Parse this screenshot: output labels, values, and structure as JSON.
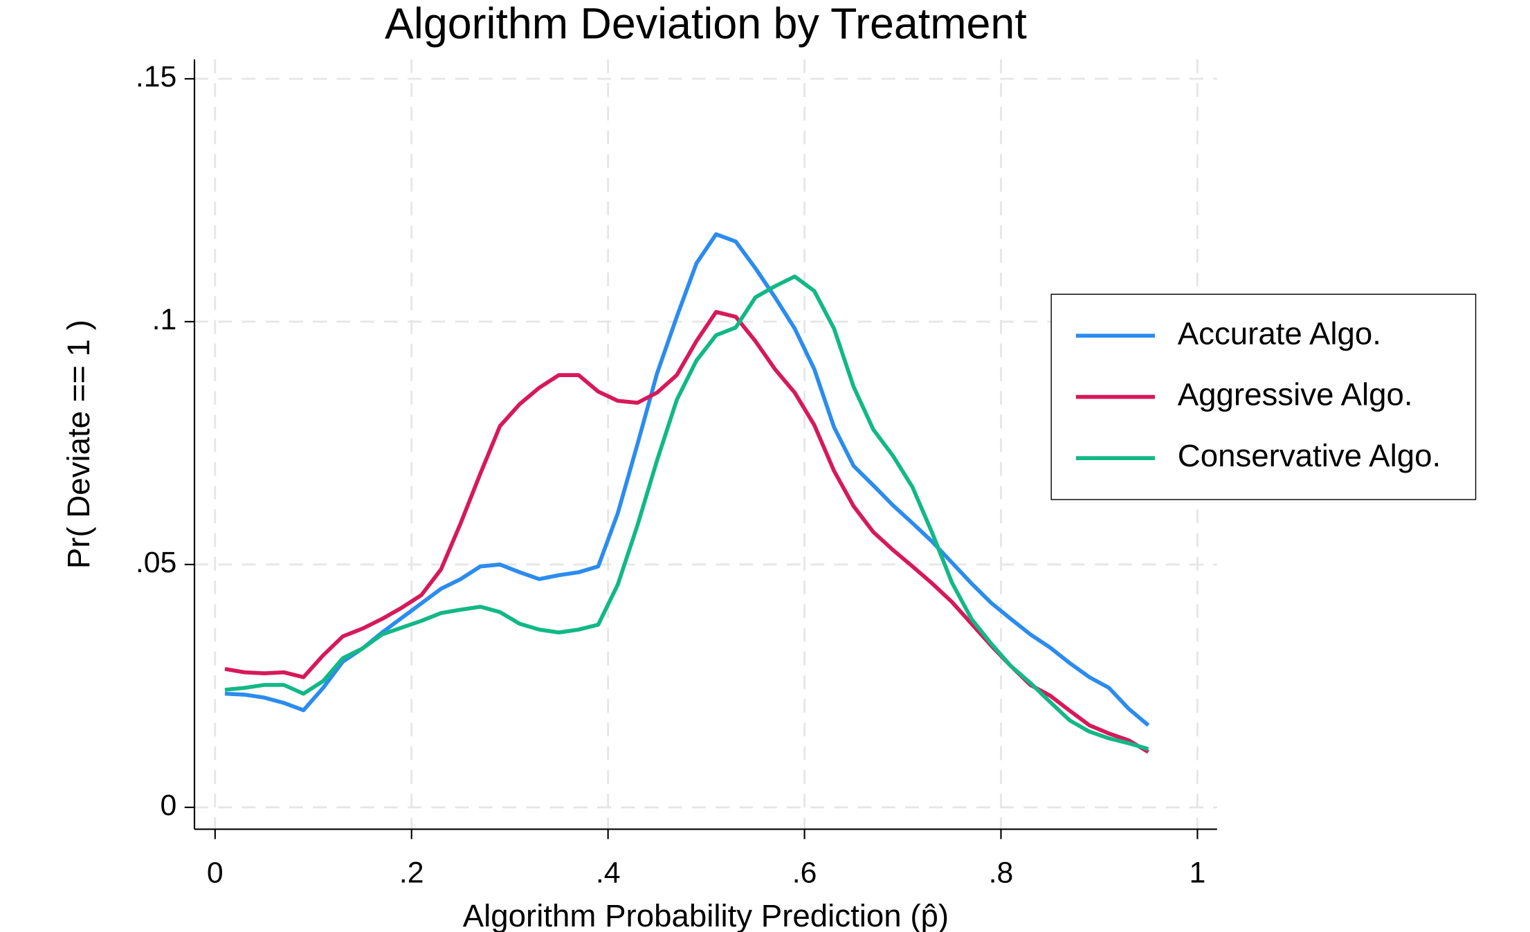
{
  "chart_data": {
    "type": "line",
    "title": "Algorithm Deviation by Treatment",
    "x_label": "Algorithm Probability Prediction (p̂)",
    "y_label": "Pr( Deviate == 1 )",
    "x": [
      0.01,
      0.03,
      0.05,
      0.07,
      0.09,
      0.11,
      0.13,
      0.15,
      0.17,
      0.19,
      0.21,
      0.23,
      0.25,
      0.27,
      0.29,
      0.31,
      0.33,
      0.35,
      0.37,
      0.39,
      0.41,
      0.43,
      0.45,
      0.47,
      0.49,
      0.51,
      0.53,
      0.55,
      0.57,
      0.59,
      0.61,
      0.63,
      0.65,
      0.67,
      0.69,
      0.71,
      0.73,
      0.75,
      0.77,
      0.79,
      0.81,
      0.83,
      0.85,
      0.87,
      0.89,
      0.91,
      0.93,
      0.95
    ],
    "series": [
      {
        "name": "Accurate Algo.",
        "color": "#2b8cee",
        "values": [
          0.0234,
          0.0232,
          0.0226,
          0.0215,
          0.02,
          0.0246,
          0.03,
          0.0327,
          0.036,
          0.039,
          0.042,
          0.045,
          0.047,
          0.0496,
          0.05,
          0.0484,
          0.047,
          0.0478,
          0.0484,
          0.0496,
          0.0606,
          0.0748,
          0.0894,
          0.101,
          0.112,
          0.118,
          0.1165,
          0.111,
          0.105,
          0.0986,
          0.0902,
          0.0783,
          0.0703,
          0.0663,
          0.0622,
          0.0585,
          0.0547,
          0.0504,
          0.0461,
          0.0421,
          0.0388,
          0.0356,
          0.0329,
          0.0297,
          0.0268,
          0.0246,
          0.0203,
          0.0169
        ]
      },
      {
        "name": "Aggressive Algo.",
        "color": "#d6195a",
        "values": [
          0.0285,
          0.0278,
          0.0276,
          0.0278,
          0.0268,
          0.0313,
          0.0352,
          0.0368,
          0.0388,
          0.0411,
          0.0437,
          0.049,
          0.0585,
          0.0687,
          0.0785,
          0.083,
          0.0864,
          0.089,
          0.089,
          0.0856,
          0.0837,
          0.0833,
          0.0854,
          0.089,
          0.096,
          0.102,
          0.101,
          0.096,
          0.0902,
          0.0854,
          0.0787,
          0.0693,
          0.062,
          0.0567,
          0.053,
          0.0496,
          0.0461,
          0.0423,
          0.0378,
          0.0333,
          0.0291,
          0.0252,
          0.023,
          0.0199,
          0.0169,
          0.0152,
          0.0138,
          0.0114
        ]
      },
      {
        "name": "Conservative Algo.",
        "color": "#12b886",
        "values": [
          0.0242,
          0.0246,
          0.0252,
          0.0252,
          0.0234,
          0.026,
          0.0307,
          0.0327,
          0.0356,
          0.037,
          0.0384,
          0.04,
          0.0407,
          0.0413,
          0.0402,
          0.0378,
          0.0366,
          0.036,
          0.0366,
          0.0376,
          0.0459,
          0.0581,
          0.0715,
          0.0839,
          0.092,
          0.0972,
          0.0988,
          0.105,
          0.1073,
          0.1093,
          0.1063,
          0.0986,
          0.0866,
          0.0778,
          0.0724,
          0.0659,
          0.0565,
          0.0463,
          0.0388,
          0.0337,
          0.0291,
          0.0256,
          0.0217,
          0.0179,
          0.0156,
          0.0142,
          0.0132,
          0.012
        ]
      }
    ],
    "xlim": [
      -0.021,
      1.02
    ],
    "ylim": [
      -0.0045,
      0.154
    ],
    "xticks": [
      0,
      {
        "value": 0.2,
        "label": ".2"
      },
      {
        "value": 0.4,
        "label": ".4"
      },
      {
        "value": 0.6,
        "label": ".6"
      },
      {
        "value": 0.8,
        "label": ".8"
      },
      1
    ],
    "yticks": [
      0,
      {
        "value": 0.05,
        "label": ".05"
      },
      {
        "value": 0.1,
        "label": ".1"
      },
      {
        "value": 0.15,
        "label": ".15"
      }
    ],
    "grid": true,
    "legend": "right"
  }
}
